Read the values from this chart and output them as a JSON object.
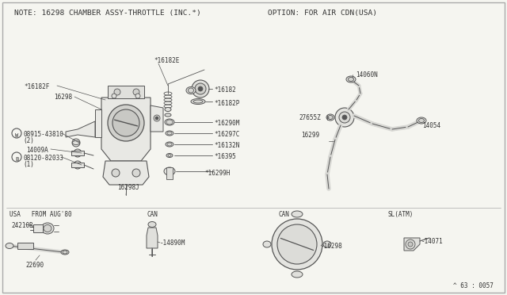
{
  "bg_color": "#f5f5f0",
  "line_color": "#555555",
  "text_color": "#333333",
  "title_note": "NOTE: 16298 CHAMBER ASSY-THROTTLE (INC.*)",
  "title_option": "OPTION: FOR AIR CDN(USA)",
  "footer": "^ 63 : 0057",
  "border_color": "#aaaaaa",
  "fs_title": 6.8,
  "fs_label": 6.2,
  "fs_small": 5.5
}
